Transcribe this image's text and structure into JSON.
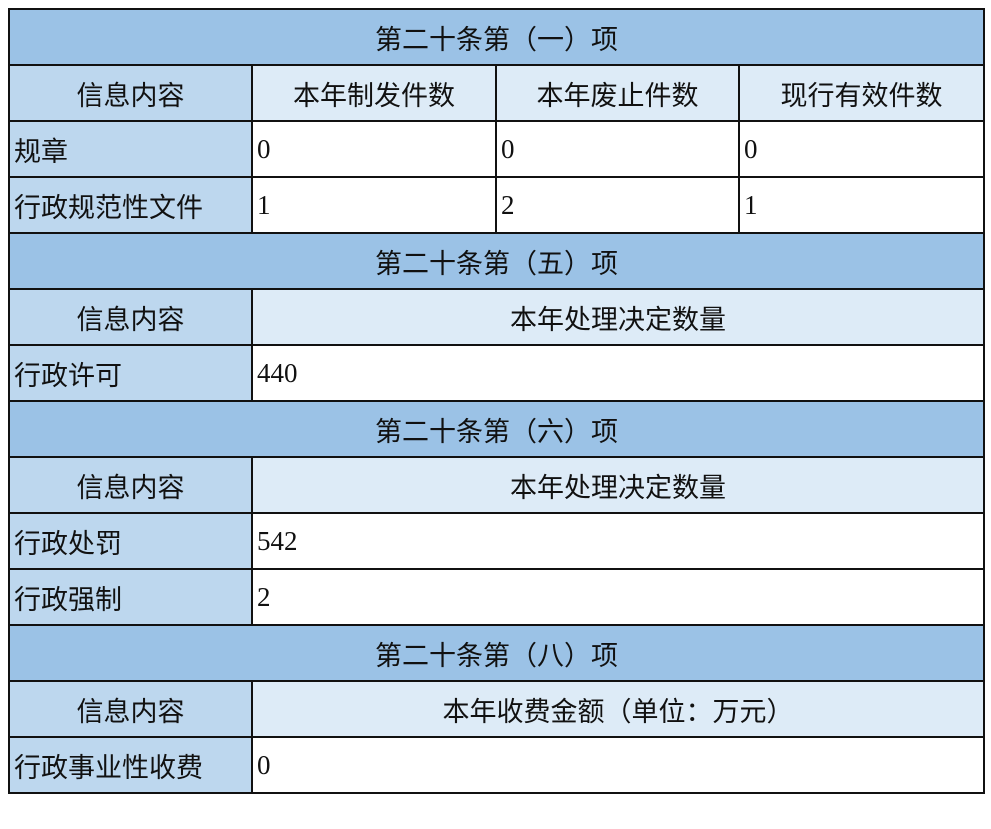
{
  "colors": {
    "section_header": "#9bc2e6",
    "label_cell": "#bdd7ee",
    "column_header": "#ddebf7"
  },
  "sections": [
    {
      "title": "第二十条第（一）项",
      "header_label": "信息内容",
      "columns": [
        "本年制发件数",
        "本年废止件数",
        "现行有效件数"
      ],
      "rows": [
        {
          "label": "规章",
          "values": [
            "0",
            "0",
            "0"
          ]
        },
        {
          "label": "行政规范性文件",
          "values": [
            "1",
            "2",
            "1"
          ]
        }
      ]
    },
    {
      "title": "第二十条第（五）项",
      "header_label": "信息内容",
      "column": "本年处理决定数量",
      "rows": [
        {
          "label": "行政许可",
          "value": "440"
        }
      ]
    },
    {
      "title": "第二十条第（六）项",
      "header_label": "信息内容",
      "column": "本年处理决定数量",
      "rows": [
        {
          "label": "行政处罚",
          "value": "542"
        },
        {
          "label": "行政强制",
          "value": "2"
        }
      ]
    },
    {
      "title": "第二十条第（八）项",
      "header_label": "信息内容",
      "column": "本年收费金额（单位：万元）",
      "rows": [
        {
          "label": "行政事业性收费",
          "value": "0"
        }
      ]
    }
  ]
}
